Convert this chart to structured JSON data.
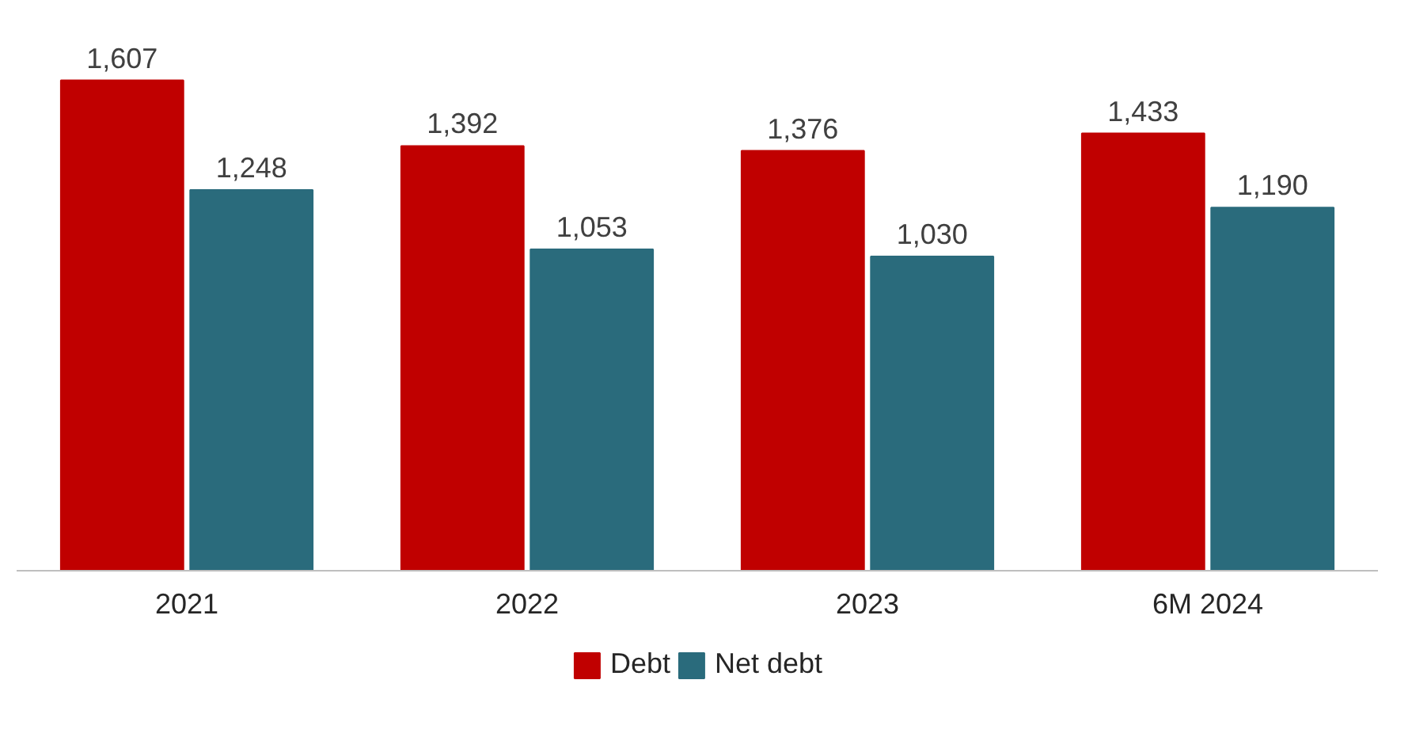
{
  "chart_data": {
    "type": "bar",
    "categories": [
      "2021",
      "2022",
      "2023",
      "6M 2024"
    ],
    "series": [
      {
        "name": "Debt",
        "color": "#c00000",
        "values": [
          1607,
          1392,
          1376,
          1433
        ],
        "value_labels": [
          "1,607",
          "1,392",
          "1,376",
          "1,433"
        ]
      },
      {
        "name": "Net debt",
        "color": "#2a6b7c",
        "values": [
          1248,
          1053,
          1030,
          1190
        ],
        "value_labels": [
          "1,248",
          "1,053",
          "1,030",
          "1,190"
        ]
      }
    ],
    "legend": "bottom"
  }
}
